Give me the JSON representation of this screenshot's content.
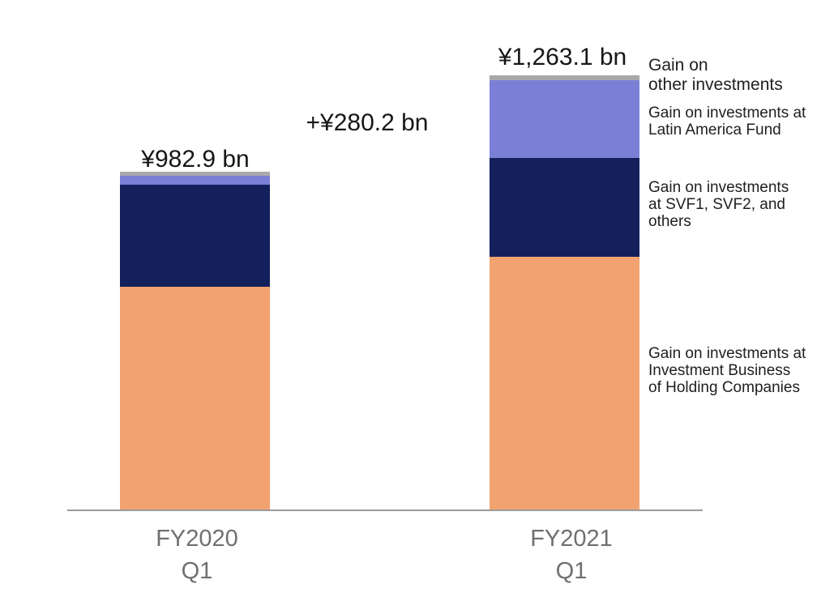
{
  "page": {
    "background": "#FFFFFF"
  },
  "chart_data": {
    "type": "bar",
    "stacked": true,
    "title": "",
    "unit": "¥ bn",
    "categories": [
      "FY2020 Q1",
      "FY2021 Q1"
    ],
    "series": [
      {
        "name": "Gain on investments at Investment Business of Holding Companies",
        "color": "#F1A26F",
        "values": [
          650,
          736
        ]
      },
      {
        "name": "Gain on investments at SVF1, SVF2, and others",
        "color": "#13205C",
        "values": [
          295,
          287
        ]
      },
      {
        "name": "Gain on investments at Latin America Fund",
        "color": "#7B80D6",
        "values": [
          26,
          226
        ]
      },
      {
        "name": "Gain on other investments",
        "color": "#A8A8A8",
        "values": [
          12,
          14
        ]
      }
    ],
    "totals": [
      982.9,
      1263.1
    ],
    "total_labels": [
      "¥982.9 bn",
      "¥1,263.1 bn"
    ],
    "delta_label": "+¥280.2 bn",
    "ylim": [
      0,
      1300
    ],
    "gridlines": false,
    "legend_position": "right",
    "segment_values_estimated_from_pixels": true
  },
  "axis": {
    "ticks": [
      {
        "line1": "FY2020",
        "line2": "Q1"
      },
      {
        "line1": "FY2021",
        "line2": "Q1"
      }
    ],
    "line_color": "#9C9C9C",
    "label_color": "#707070"
  },
  "legend": {
    "items": [
      {
        "lines": [
          "Gain on",
          "other investments"
        ]
      },
      {
        "lines": [
          "Gain on investments at",
          "Latin America Fund"
        ]
      },
      {
        "lines": [
          "Gain on investments",
          "at SVF1, SVF2, and",
          "others"
        ]
      },
      {
        "lines": [
          "Gain on investments at",
          "Investment Business",
          "of Holding Companies"
        ]
      }
    ],
    "text_color": "#202020"
  },
  "colors": {
    "holding_companies": "#F1A26F",
    "svf": "#13205C",
    "latin_america_fund": "#7B80D6",
    "other_investments": "#A8A8A8"
  }
}
